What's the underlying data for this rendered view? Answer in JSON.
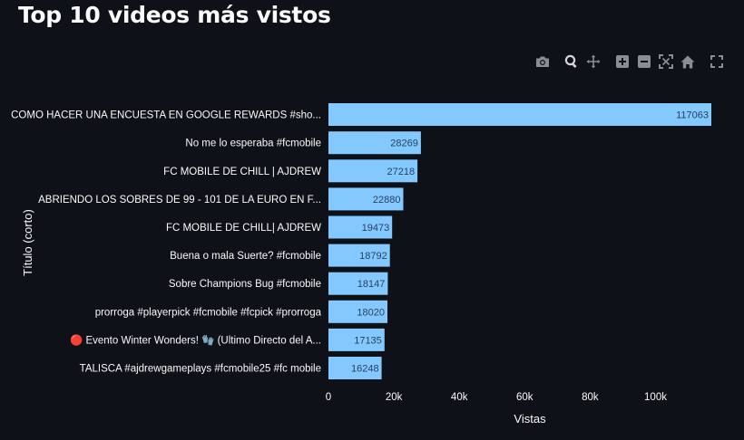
{
  "page": {
    "title": "Top 10 videos más vistos"
  },
  "modebar": {
    "icons": [
      "camera-icon",
      "zoom-icon",
      "pan-icon",
      "zoom-in-icon",
      "zoom-out-icon",
      "autoscale-icon",
      "reset-axes-icon",
      "fullscreen-icon"
    ]
  },
  "colors": {
    "background": "#0e1117",
    "bar": "#83c9ff",
    "text": "#fafafa",
    "data_label": "#2a3f5f",
    "modebar_icon": "#8a8d93",
    "modebar_active": "#d4d6da"
  },
  "chart_data": {
    "type": "bar",
    "orientation": "horizontal",
    "categories": [
      "COMO HACER UNA ENCUESTA EN GOOGLE REWARDS  #sho...",
      "No me lo esperaba #fcmobile",
      "FC MOBILE DE CHILL | AJDREW",
      "ABRIENDO LOS SOBRES DE 99 - 101 DE LA EURO EN F...",
      "FC MOBILE DE CHILL| AJDREW",
      "Buena o mala Suerte? #fcmobile",
      "Sobre Champions Bug #fcmobile",
      "prorroga #playerpick #fcmobile #fcpick #prorroga",
      "🔴 Evento Winter Wonders! 🧤 (Ultimo Directo del A...",
      "TALISCA #ajdrewgameplays #fcmobile25 #fc mobile"
    ],
    "values": [
      117063,
      28269,
      27218,
      22880,
      19473,
      18792,
      18147,
      18020,
      17135,
      16248
    ],
    "data_labels": [
      "117063",
      "28269",
      "27218",
      "22880",
      "19473",
      "18792",
      "18147",
      "18020",
      "17135",
      "16248"
    ],
    "xlabel": "Vistas",
    "ylabel": "Título (corto)",
    "xlim": [
      0,
      117063
    ],
    "xticks": [
      0,
      20000,
      40000,
      60000,
      80000,
      100000
    ],
    "xtick_labels": [
      "0",
      "20k",
      "40k",
      "60k",
      "80k",
      "100k"
    ],
    "grid": false,
    "legend": "none"
  }
}
